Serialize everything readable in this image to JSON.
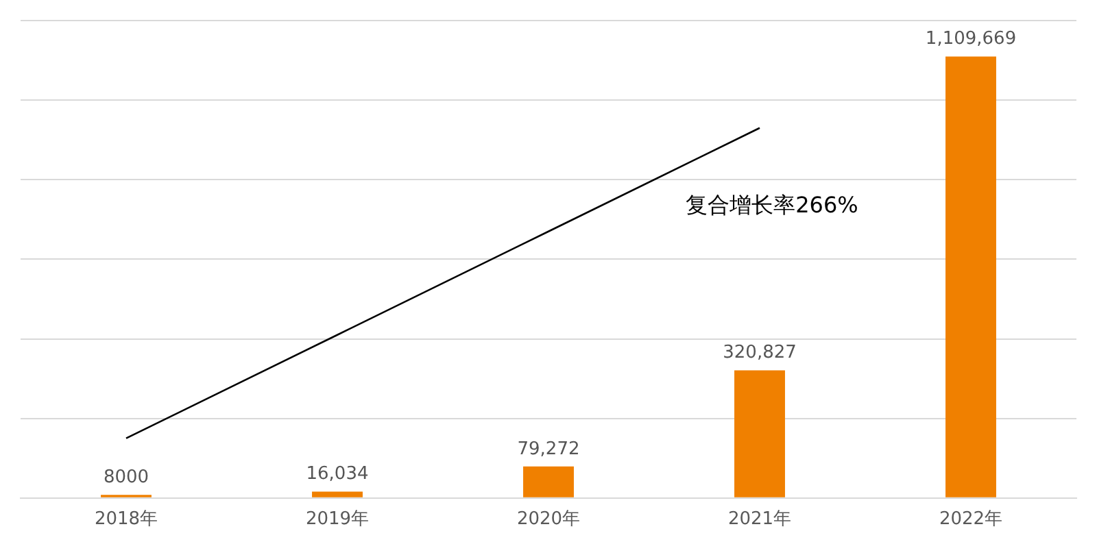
{
  "chart_data": {
    "type": "bar",
    "categories": [
      "2018年",
      "2019年",
      "2020年",
      "2021年",
      "2022年"
    ],
    "series": [
      {
        "color": "#f08000",
        "values": [
          8000,
          16034,
          79272,
          320827,
          1109669
        ],
        "value_labels": [
          "8000",
          "16,034",
          "79,272",
          "320,827",
          "1,109,669"
        ]
      },
      {
        "type": "line",
        "color": "#000000",
        "values": [
          150000,
          410000,
          670000,
          930000,
          null
        ],
        "marker": "none"
      }
    ],
    "ylim": [
      0,
      1200000
    ],
    "yticks": [
      {
        "value": 0,
        "label": null
      },
      {
        "value": 200000,
        "label": null
      },
      {
        "value": 400000,
        "label": null
      },
      {
        "value": 600000,
        "label": null
      },
      {
        "value": 800000,
        "label": null
      },
      {
        "value": 1000000,
        "label": null
      },
      {
        "value": 1200000,
        "label": null
      }
    ],
    "grid": "y",
    "legend": false,
    "tick_labels": "x",
    "annotations": [
      "复合增长率266%"
    ]
  }
}
